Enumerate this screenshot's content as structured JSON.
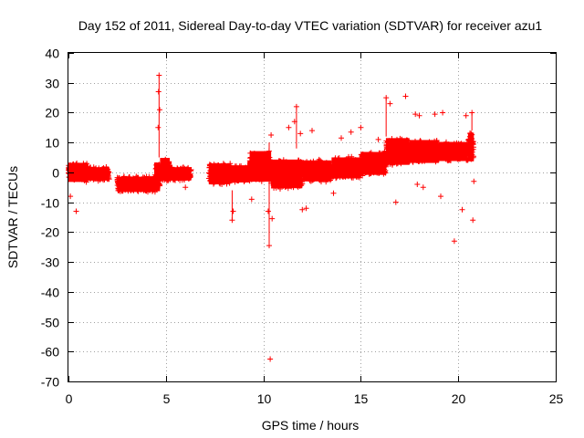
{
  "chart_data": {
    "type": "scatter",
    "title": "Day 152 of 2011, Sidereal Day-to-day VTEC variation (SDTVAR) for receiver azu1",
    "xlabel": "GPS time / hours",
    "ylabel": "SDTVAR / TECUs",
    "xlim": [
      0,
      25
    ],
    "ylim": [
      -70,
      40
    ],
    "xticks": [
      0,
      5,
      10,
      15,
      20,
      25
    ],
    "yticks": [
      40,
      30,
      20,
      10,
      0,
      -10,
      -20,
      -30,
      -40,
      -50,
      -60,
      -70
    ],
    "grid": true,
    "marker": "+",
    "color": "#ff0000",
    "series": [
      {
        "name": "SDTVAR",
        "dense_segments": [
          {
            "x": [
              0.0,
              1.0
            ],
            "low": -5,
            "high": 5
          },
          {
            "x": [
              1.0,
              2.1
            ],
            "low": -4,
            "high": 3
          },
          {
            "x": [
              2.5,
              4.4
            ],
            "low": -8,
            "high": 0
          },
          {
            "x": [
              4.4,
              4.7
            ],
            "low": -9,
            "high": 6
          },
          {
            "x": [
              4.7,
              5.2
            ],
            "low": -5,
            "high": 7
          },
          {
            "x": [
              5.2,
              6.3
            ],
            "low": -4,
            "high": 3
          },
          {
            "x": [
              7.2,
              8.3
            ],
            "low": -6,
            "high": 5
          },
          {
            "x": [
              8.3,
              9.3
            ],
            "low": -5,
            "high": 4
          },
          {
            "x": [
              9.3,
              10.4
            ],
            "low": -6,
            "high": 10
          },
          {
            "x": [
              10.4,
              12.0
            ],
            "low": -8,
            "high": 7
          },
          {
            "x": [
              12.0,
              13.5
            ],
            "low": -5,
            "high": 6
          },
          {
            "x": [
              13.5,
              15.0
            ],
            "low": -4,
            "high": 7
          },
          {
            "x": [
              15.0,
              16.3
            ],
            "low": -3,
            "high": 9
          },
          {
            "x": [
              16.3,
              17.5
            ],
            "low": 0,
            "high": 14
          },
          {
            "x": [
              17.5,
              19.0
            ],
            "low": 1,
            "high": 13
          },
          {
            "x": [
              19.0,
              20.5
            ],
            "low": 2,
            "high": 12
          },
          {
            "x": [
              20.5,
              20.8
            ],
            "low": 1,
            "high": 16
          }
        ],
        "points": [
          [
            0.4,
            -13
          ],
          [
            4.65,
            32.5
          ],
          [
            4.62,
            27
          ],
          [
            4.68,
            21
          ],
          [
            4.6,
            15
          ],
          [
            10.3,
            -24.5
          ],
          [
            10.35,
            -62.5
          ],
          [
            10.4,
            12.5
          ],
          [
            10.45,
            -15.5
          ],
          [
            10.25,
            -13
          ],
          [
            11.7,
            22
          ],
          [
            11.6,
            17
          ],
          [
            11.3,
            15
          ],
          [
            11.9,
            13
          ],
          [
            12.5,
            14
          ],
          [
            14.0,
            11.5
          ],
          [
            14.5,
            13.5
          ],
          [
            15.0,
            15
          ],
          [
            15.9,
            11
          ],
          [
            16.3,
            25
          ],
          [
            17.3,
            25.5
          ],
          [
            16.5,
            23
          ],
          [
            16.8,
            -10
          ],
          [
            17.8,
            19.5
          ],
          [
            18.0,
            19
          ],
          [
            18.8,
            19.5
          ],
          [
            19.2,
            20
          ],
          [
            19.8,
            -23
          ],
          [
            20.75,
            -16
          ],
          [
            20.7,
            20
          ],
          [
            20.4,
            19
          ],
          [
            8.4,
            -16
          ],
          [
            8.45,
            -13
          ],
          [
            12.2,
            -12
          ],
          [
            12.0,
            -12.5
          ],
          [
            9.4,
            -9
          ],
          [
            20.2,
            -12.5
          ],
          [
            19.1,
            -8
          ],
          [
            17.9,
            -4
          ],
          [
            18.2,
            -5
          ],
          [
            13.6,
            -7
          ],
          [
            20.8,
            -3
          ],
          [
            0.1,
            -8
          ],
          [
            2.7,
            -5
          ],
          [
            6.0,
            -5
          ]
        ]
      }
    ]
  }
}
